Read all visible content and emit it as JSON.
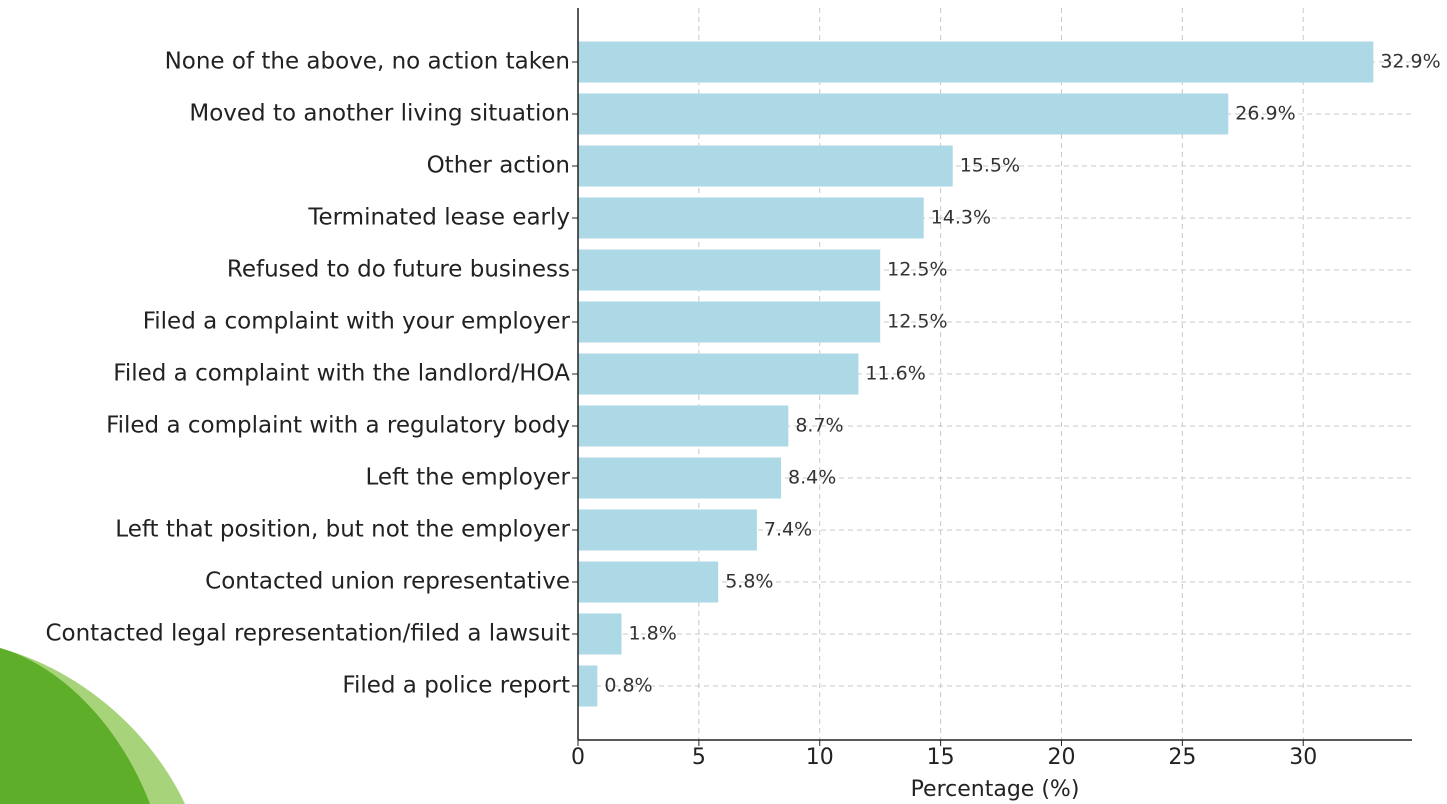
{
  "chart_data": {
    "type": "barh",
    "xlabel": "Percentage (%)",
    "categories": [
      "None of the above, no action taken",
      "Moved to another living situation",
      "Other action",
      "Terminated lease early",
      "Refused to do future business",
      "Filed a complaint with your employer",
      "Filed a complaint with the landlord/HOA",
      "Filed a complaint with a regulatory body",
      "Left the employer",
      "Left that position, but not the employer",
      "Contacted union representative",
      "Contacted legal representation/filed a lawsuit",
      "Filed a police report"
    ],
    "values": [
      32.9,
      26.9,
      15.5,
      14.3,
      12.5,
      12.5,
      11.6,
      8.7,
      8.4,
      7.4,
      5.8,
      1.8,
      0.8
    ],
    "value_labels": [
      "32.9%",
      "26.9%",
      "15.5%",
      "14.3%",
      "12.5%",
      "12.5%",
      "11.6%",
      "8.7%",
      "8.4%",
      "7.4%",
      "5.8%",
      "1.8%",
      "0.8%"
    ],
    "color": "#add8e6",
    "xlim": [
      0,
      34.5
    ],
    "xticks": [
      0,
      5,
      10,
      15,
      20,
      25,
      30
    ],
    "grid": true
  }
}
